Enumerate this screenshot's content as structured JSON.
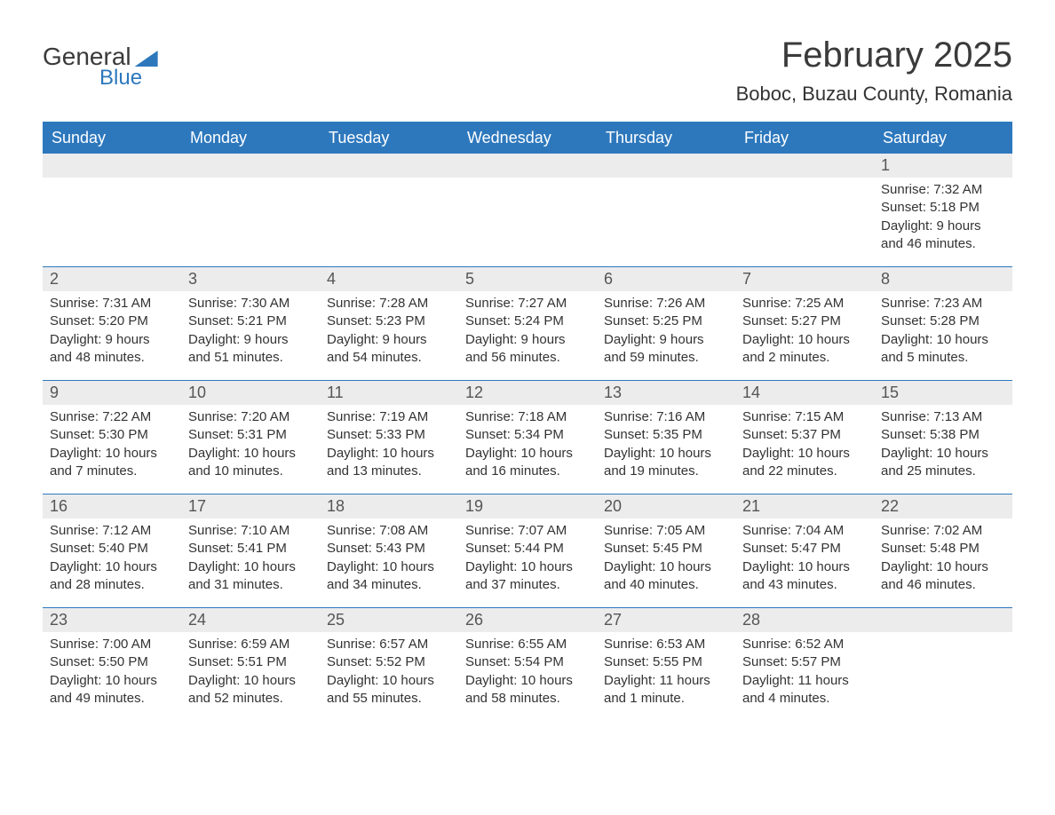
{
  "brand": {
    "word1": "General",
    "word2": "Blue"
  },
  "title": "February 2025",
  "location": "Boboc, Buzau County, Romania",
  "colors": {
    "accent": "#2d78bd",
    "row_bg": "#ececec",
    "text": "#333333",
    "header_text": "#3a3a3a",
    "white": "#ffffff"
  },
  "day_headers": [
    "Sunday",
    "Monday",
    "Tuesday",
    "Wednesday",
    "Thursday",
    "Friday",
    "Saturday"
  ],
  "weeks": [
    [
      null,
      null,
      null,
      null,
      null,
      null,
      {
        "n": "1",
        "sunrise": "Sunrise: 7:32 AM",
        "sunset": "Sunset: 5:18 PM",
        "daylight": "Daylight: 9 hours and 46 minutes."
      }
    ],
    [
      {
        "n": "2",
        "sunrise": "Sunrise: 7:31 AM",
        "sunset": "Sunset: 5:20 PM",
        "daylight": "Daylight: 9 hours and 48 minutes."
      },
      {
        "n": "3",
        "sunrise": "Sunrise: 7:30 AM",
        "sunset": "Sunset: 5:21 PM",
        "daylight": "Daylight: 9 hours and 51 minutes."
      },
      {
        "n": "4",
        "sunrise": "Sunrise: 7:28 AM",
        "sunset": "Sunset: 5:23 PM",
        "daylight": "Daylight: 9 hours and 54 minutes."
      },
      {
        "n": "5",
        "sunrise": "Sunrise: 7:27 AM",
        "sunset": "Sunset: 5:24 PM",
        "daylight": "Daylight: 9 hours and 56 minutes."
      },
      {
        "n": "6",
        "sunrise": "Sunrise: 7:26 AM",
        "sunset": "Sunset: 5:25 PM",
        "daylight": "Daylight: 9 hours and 59 minutes."
      },
      {
        "n": "7",
        "sunrise": "Sunrise: 7:25 AM",
        "sunset": "Sunset: 5:27 PM",
        "daylight": "Daylight: 10 hours and 2 minutes."
      },
      {
        "n": "8",
        "sunrise": "Sunrise: 7:23 AM",
        "sunset": "Sunset: 5:28 PM",
        "daylight": "Daylight: 10 hours and 5 minutes."
      }
    ],
    [
      {
        "n": "9",
        "sunrise": "Sunrise: 7:22 AM",
        "sunset": "Sunset: 5:30 PM",
        "daylight": "Daylight: 10 hours and 7 minutes."
      },
      {
        "n": "10",
        "sunrise": "Sunrise: 7:20 AM",
        "sunset": "Sunset: 5:31 PM",
        "daylight": "Daylight: 10 hours and 10 minutes."
      },
      {
        "n": "11",
        "sunrise": "Sunrise: 7:19 AM",
        "sunset": "Sunset: 5:33 PM",
        "daylight": "Daylight: 10 hours and 13 minutes."
      },
      {
        "n": "12",
        "sunrise": "Sunrise: 7:18 AM",
        "sunset": "Sunset: 5:34 PM",
        "daylight": "Daylight: 10 hours and 16 minutes."
      },
      {
        "n": "13",
        "sunrise": "Sunrise: 7:16 AM",
        "sunset": "Sunset: 5:35 PM",
        "daylight": "Daylight: 10 hours and 19 minutes."
      },
      {
        "n": "14",
        "sunrise": "Sunrise: 7:15 AM",
        "sunset": "Sunset: 5:37 PM",
        "daylight": "Daylight: 10 hours and 22 minutes."
      },
      {
        "n": "15",
        "sunrise": "Sunrise: 7:13 AM",
        "sunset": "Sunset: 5:38 PM",
        "daylight": "Daylight: 10 hours and 25 minutes."
      }
    ],
    [
      {
        "n": "16",
        "sunrise": "Sunrise: 7:12 AM",
        "sunset": "Sunset: 5:40 PM",
        "daylight": "Daylight: 10 hours and 28 minutes."
      },
      {
        "n": "17",
        "sunrise": "Sunrise: 7:10 AM",
        "sunset": "Sunset: 5:41 PM",
        "daylight": "Daylight: 10 hours and 31 minutes."
      },
      {
        "n": "18",
        "sunrise": "Sunrise: 7:08 AM",
        "sunset": "Sunset: 5:43 PM",
        "daylight": "Daylight: 10 hours and 34 minutes."
      },
      {
        "n": "19",
        "sunrise": "Sunrise: 7:07 AM",
        "sunset": "Sunset: 5:44 PM",
        "daylight": "Daylight: 10 hours and 37 minutes."
      },
      {
        "n": "20",
        "sunrise": "Sunrise: 7:05 AM",
        "sunset": "Sunset: 5:45 PM",
        "daylight": "Daylight: 10 hours and 40 minutes."
      },
      {
        "n": "21",
        "sunrise": "Sunrise: 7:04 AM",
        "sunset": "Sunset: 5:47 PM",
        "daylight": "Daylight: 10 hours and 43 minutes."
      },
      {
        "n": "22",
        "sunrise": "Sunrise: 7:02 AM",
        "sunset": "Sunset: 5:48 PM",
        "daylight": "Daylight: 10 hours and 46 minutes."
      }
    ],
    [
      {
        "n": "23",
        "sunrise": "Sunrise: 7:00 AM",
        "sunset": "Sunset: 5:50 PM",
        "daylight": "Daylight: 10 hours and 49 minutes."
      },
      {
        "n": "24",
        "sunrise": "Sunrise: 6:59 AM",
        "sunset": "Sunset: 5:51 PM",
        "daylight": "Daylight: 10 hours and 52 minutes."
      },
      {
        "n": "25",
        "sunrise": "Sunrise: 6:57 AM",
        "sunset": "Sunset: 5:52 PM",
        "daylight": "Daylight: 10 hours and 55 minutes."
      },
      {
        "n": "26",
        "sunrise": "Sunrise: 6:55 AM",
        "sunset": "Sunset: 5:54 PM",
        "daylight": "Daylight: 10 hours and 58 minutes."
      },
      {
        "n": "27",
        "sunrise": "Sunrise: 6:53 AM",
        "sunset": "Sunset: 5:55 PM",
        "daylight": "Daylight: 11 hours and 1 minute."
      },
      {
        "n": "28",
        "sunrise": "Sunrise: 6:52 AM",
        "sunset": "Sunset: 5:57 PM",
        "daylight": "Daylight: 11 hours and 4 minutes."
      },
      null
    ]
  ]
}
